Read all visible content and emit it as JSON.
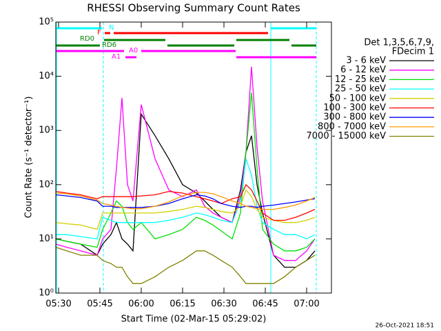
{
  "chart_data": {
    "type": "line",
    "title": "RHESSI Observing Summary Count Rates",
    "x_label": "Start Time (02-Mar-15 05:29:02)",
    "y_label": "Count Rate (s⁻¹ detector⁻¹)",
    "log_y": true,
    "legend_title": [
      "Det 1,3,5,6,7,9,",
      "FDecim 1"
    ],
    "timestamp": "26-Oct-2021 18:51",
    "annotations": [
      "N",
      "F",
      "RD0",
      "RD6",
      "A0",
      "A1"
    ],
    "xlim": [
      329,
      429
    ],
    "ylim": [
      1,
      100000
    ],
    "xticks": [
      {
        "value": 330,
        "label": "05:30"
      },
      {
        "value": 345,
        "label": "05:45"
      },
      {
        "value": 360,
        "label": "06:00"
      },
      {
        "value": 375,
        "label": "06:15"
      },
      {
        "value": 390,
        "label": "06:30"
      },
      {
        "value": 405,
        "label": "06:45"
      },
      {
        "value": 420,
        "label": "07:00"
      }
    ],
    "yticks": [
      {
        "value": 1,
        "label": "10⁰"
      },
      {
        "value": 10,
        "label": "10¹"
      },
      {
        "value": 100,
        "label": "10²"
      },
      {
        "value": 1000,
        "label": "10³"
      },
      {
        "value": 10000,
        "label": "10⁴"
      },
      {
        "value": 100000,
        "label": "10⁵"
      }
    ],
    "x": [
      329,
      333,
      338,
      344,
      346,
      349,
      351,
      353,
      355,
      357,
      360,
      365,
      370,
      375,
      380,
      383,
      386,
      389,
      393,
      396,
      398,
      400,
      402,
      404,
      408,
      412,
      416,
      420,
      423
    ],
    "series": [
      {
        "name": "3 - 6 keV",
        "color": "#000000",
        "values": [
          10,
          9,
          8,
          5,
          8,
          12,
          20,
          10,
          8,
          6,
          2000,
          800,
          300,
          100,
          70,
          50,
          35,
          25,
          20,
          80,
          400,
          800,
          100,
          30,
          5,
          3,
          3,
          4,
          6
        ]
      },
      {
        "name": "6 - 12 keV",
        "color": "#ff00ff",
        "values": [
          8,
          7,
          6,
          5,
          10,
          15,
          200,
          4000,
          100,
          50,
          3000,
          300,
          80,
          60,
          80,
          40,
          30,
          25,
          20,
          60,
          400,
          15000,
          500,
          50,
          5,
          4,
          4,
          6,
          10
        ]
      },
      {
        "name": "12 - 25 keV",
        "color": "#00e000",
        "values": [
          10,
          9,
          8,
          7,
          15,
          30,
          50,
          40,
          20,
          15,
          20,
          10,
          12,
          15,
          25,
          22,
          18,
          14,
          10,
          30,
          400,
          5000,
          200,
          15,
          8,
          6,
          6,
          7,
          10
        ]
      },
      {
        "name": "25 - 50 keV",
        "color": "#00ffff",
        "values": [
          12,
          12,
          11,
          10,
          25,
          22,
          20,
          20,
          20,
          20,
          20,
          20,
          22,
          25,
          30,
          28,
          25,
          22,
          20,
          50,
          300,
          150,
          40,
          20,
          15,
          12,
          12,
          10,
          12
        ]
      },
      {
        "name": "50 - 100 keV",
        "color": "#d0d000",
        "values": [
          20,
          19,
          18,
          15,
          30,
          30,
          30,
          30,
          30,
          30,
          30,
          30,
          32,
          35,
          40,
          38,
          35,
          32,
          30,
          40,
          80,
          60,
          35,
          25,
          22,
          20,
          20,
          22,
          25
        ]
      },
      {
        "name": "100 - 300 keV",
        "color": "#ff0000",
        "values": [
          75,
          70,
          65,
          55,
          60,
          60,
          60,
          60,
          60,
          60,
          62,
          65,
          75,
          70,
          60,
          55,
          50,
          45,
          55,
          60,
          100,
          80,
          50,
          30,
          22,
          22,
          25,
          30,
          35
        ]
      },
      {
        "name": "300 - 800 keV",
        "color": "#0000ff",
        "values": [
          65,
          62,
          58,
          50,
          40,
          40,
          38,
          38,
          38,
          38,
          38,
          40,
          45,
          55,
          65,
          62,
          55,
          45,
          40,
          38,
          40,
          40,
          38,
          40,
          42,
          45,
          48,
          52,
          55
        ]
      },
      {
        "name": "800 - 7000 keV",
        "color": "#ff9900",
        "values": [
          70,
          68,
          62,
          52,
          45,
          42,
          40,
          38,
          37,
          36,
          36,
          40,
          48,
          62,
          72,
          72,
          68,
          60,
          50,
          45,
          40,
          38,
          36,
          35,
          35,
          38,
          42,
          50,
          58
        ]
      },
      {
        "name": "7000 - 15000 keV",
        "color": "#808000",
        "values": [
          7,
          6,
          5,
          5,
          4,
          3.5,
          3,
          3,
          2,
          1.5,
          1.5,
          2,
          3,
          4,
          6,
          6,
          5,
          4,
          3,
          2,
          1.5,
          1.5,
          1.5,
          1.5,
          1.5,
          2,
          3,
          4,
          5
        ]
      }
    ]
  }
}
